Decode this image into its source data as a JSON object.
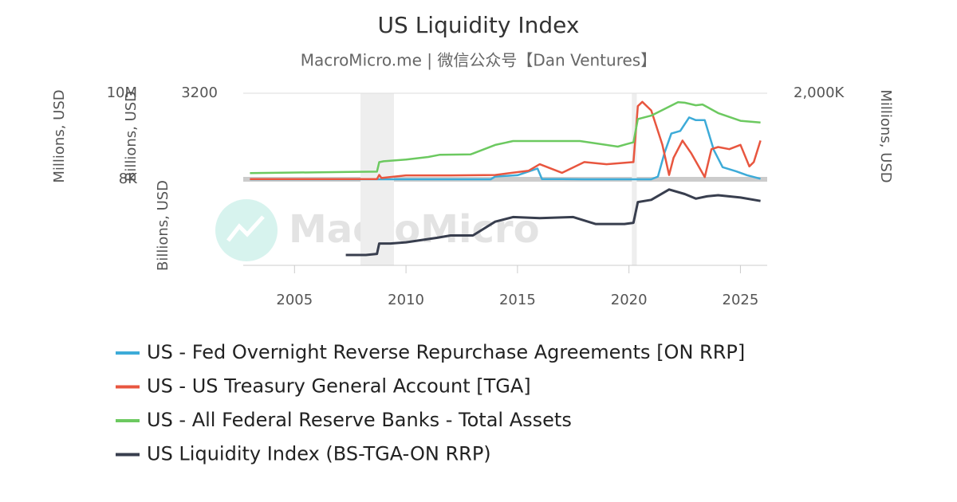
{
  "chart_data": [
    {
      "type": "line",
      "title": "US Liquidity Index",
      "subtitle": "MacroMicro.me | 微信公众号【Dan Ventures】",
      "watermark": "MacroMicro",
      "ylabel": "Millions, USD",
      "ylim": [
        8000,
        10000000
      ],
      "yticks": [
        {
          "value": 10000000,
          "label": "10M"
        },
        {
          "value": 8000,
          "label": "8K"
        }
      ],
      "y3label": "Billions, USD",
      "y3lim": [
        0,
        3200
      ],
      "y3ticks": [
        3200
      ],
      "y2label": "Millions, USD",
      "y2lim": [
        0,
        2000000
      ],
      "y2ticks": [
        {
          "value": 2000000,
          "label": "2,000K"
        }
      ],
      "xlim": [
        2002.7,
        2026.2
      ],
      "shaded_ranges": [
        [
          2007.96,
          2009.46
        ],
        [
          2020.13,
          2020.35
        ]
      ],
      "grid": true,
      "series": [
        {
          "name": "US - Fed Overnight Reverse Repurchase Agreements [ON RRP]",
          "color": "#3dabd8",
          "axis": "y3",
          "x": [
            2003,
            2013.8,
            2014,
            2015,
            2015.9,
            2016.1,
            2017,
            2018,
            2021,
            2021.3,
            2021.6,
            2021.9,
            2022.3,
            2022.7,
            2023,
            2023.4,
            2023.8,
            2024.2,
            2024.8,
            2025.3,
            2025.9
          ],
          "values": [
            0,
            0,
            100,
            150,
            400,
            10,
            5,
            0,
            0,
            100,
            1000,
            1700,
            1800,
            2300,
            2200,
            2200,
            1100,
            450,
            300,
            150,
            20
          ]
        },
        {
          "name": "US - US Treasury General Account [TGA]",
          "color": "#e8563f",
          "axis": "y2",
          "x": [
            2003,
            2006,
            2008.7,
            2008.8,
            2008.9,
            2010,
            2012,
            2014,
            2015.5,
            2016,
            2017,
            2018,
            2019,
            2020.2,
            2020.4,
            2020.6,
            2021,
            2021.5,
            2021.8,
            2022,
            2022.4,
            2022.8,
            2023.4,
            2023.7,
            2024,
            2024.5,
            2025,
            2025.4,
            2025.6,
            2025.9
          ],
          "values": [
            5000,
            5000,
            5000,
            100000,
            30000,
            90000,
            90000,
            100000,
            200000,
            350000,
            150000,
            400000,
            350000,
            400000,
            1700000,
            1800000,
            1600000,
            800000,
            100000,
            500000,
            900000,
            600000,
            50000,
            700000,
            750000,
            700000,
            800000,
            300000,
            400000,
            900000
          ]
        },
        {
          "name": "US - All Federal Reserve Banks - Total Assets",
          "color": "#6cc960",
          "axis": "y",
          "x": [
            2003,
            2007.5,
            2008.7,
            2008.8,
            2009,
            2010,
            2011,
            2011.5,
            2012.9,
            2013,
            2014,
            2014.8,
            2017.8,
            2019.5,
            2019.9,
            2020.2,
            2020.4,
            2021,
            2022.2,
            2022.5,
            2023,
            2023.3,
            2024,
            2025,
            2025.9
          ],
          "values": [
            720000,
            870000,
            900000,
            2000000,
            2100000,
            2300000,
            2600000,
            2850000,
            2900000,
            3000000,
            4000000,
            4450000,
            4450000,
            3800000,
            4100000,
            4300000,
            7000000,
            7400000,
            8950000,
            8900000,
            8600000,
            8700000,
            7700000,
            6800000,
            6600000
          ]
        }
      ]
    },
    {
      "type": "line",
      "ylabel": "Billions, USD",
      "ylim": [
        0,
        7000
      ],
      "xlim": [
        2002.7,
        2026.2
      ],
      "xticks": [
        2005,
        2010,
        2015,
        2020,
        2025
      ],
      "series": [
        {
          "name": "US Liquidity Index (BS-TGA-ON RRP)",
          "color": "#383e4e",
          "axis": "y",
          "x": [
            2007.3,
            2008.2,
            2008.7,
            2008.8,
            2009.3,
            2010,
            2011.4,
            2012,
            2013,
            2014,
            2014.8,
            2016,
            2017.5,
            2018.5,
            2019.8,
            2020.2,
            2020.4,
            2021,
            2021.8,
            2022.5,
            2023,
            2023.5,
            2024,
            2025,
            2025.9
          ],
          "values": [
            900,
            900,
            1000,
            1900,
            1900,
            2000,
            2400,
            2600,
            2600,
            3800,
            4200,
            4100,
            4200,
            3600,
            3600,
            3700,
            5500,
            5700,
            6600,
            6200,
            5800,
            6000,
            6100,
            5900,
            5600
          ]
        }
      ]
    }
  ]
}
